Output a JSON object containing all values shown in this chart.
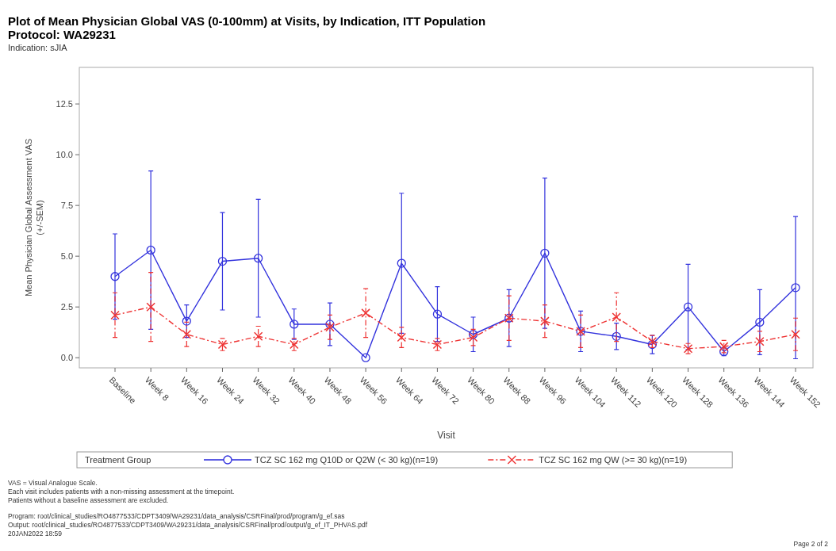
{
  "chart_data": {
    "type": "line",
    "title": "Plot of Mean Physician Global VAS (0-100mm) at Visits, by Indication, ITT Population",
    "subtitle": "Protocol: WA29231\nIndication: sJIA",
    "xlabel": "Visit",
    "ylabel": "Mean Physician Global Assessment VAS\n(+/-SEM)",
    "legend_title": "Treatment Group",
    "legend": "bottom",
    "categories": [
      "Baseline",
      "Week 8",
      "Week 16",
      "Week 24",
      "Week 32",
      "Week 40",
      "Week 48",
      "Week 56",
      "Week 64",
      "Week 72",
      "Week 80",
      "Week 88",
      "Week 96",
      "Week 104",
      "Week 112",
      "Week 120",
      "Week 128",
      "Week 136",
      "Week 144",
      "Week 152"
    ],
    "ylim": [
      -0.5,
      14.3
    ],
    "yticks": [
      {
        "value": 0,
        "label": "0.0"
      },
      {
        "value": 2.5,
        "label": "2.5"
      },
      {
        "value": 5,
        "label": "5.0"
      },
      {
        "value": 7.5,
        "label": "7.5"
      },
      {
        "value": 10,
        "label": "10.0"
      },
      {
        "value": 12.5,
        "label": "12.5"
      }
    ],
    "grid": false,
    "series": [
      {
        "name": "TCZ SC 162 mg Q10D or Q2W (< 30 kg)(n=19)",
        "color": "#3333dd",
        "marker": "circle",
        "line_style": "solid",
        "values": [
          4.0,
          5.3,
          1.8,
          4.75,
          4.9,
          1.65,
          1.65,
          0.0,
          4.65,
          2.15,
          1.15,
          1.95,
          5.15,
          1.3,
          1.05,
          0.65,
          2.5,
          0.3,
          1.75,
          3.45
        ],
        "errors": [
          2.1,
          3.9,
          0.8,
          2.4,
          2.9,
          0.75,
          1.05,
          null,
          3.45,
          1.35,
          0.85,
          1.4,
          3.7,
          1.0,
          0.65,
          0.45,
          2.1,
          0.2,
          1.6,
          3.5
        ]
      },
      {
        "name": "TCZ SC 162 mg QW (>= 30 kg)(n=19)",
        "color": "#ee3333",
        "marker": "cross",
        "line_style": "dashed",
        "values": [
          2.1,
          2.5,
          1.15,
          0.65,
          1.05,
          0.65,
          1.5,
          2.2,
          1.0,
          0.65,
          1.0,
          1.95,
          1.8,
          1.3,
          2.0,
          0.8,
          0.45,
          0.55,
          0.8,
          1.15
        ],
        "errors": [
          1.1,
          1.7,
          0.6,
          0.3,
          0.5,
          0.3,
          0.6,
          1.2,
          0.5,
          0.3,
          0.4,
          1.1,
          0.8,
          0.8,
          1.2,
          0.3,
          0.25,
          0.3,
          0.5,
          0.8
        ]
      }
    ],
    "annotations": [
      "VAS = Visual Analogue Scale.",
      "Each visit includes patients with a non-missing assessment at the timepoint.",
      "Patients without a baseline assessment are excluded.",
      "Program: root/clinical_studies/RO4877533/CDPT3409/WA29231/data_analysis/CSRFinal/prod/program/g_ef.sas",
      "Output: root/clinical_studies/RO4877533/CDPT3409/WA29231/data_analysis/CSRFinal/prod/output/g_ef_IT_PHVAS.pdf",
      "20JAN2022 18:59",
      "Page 2 of 2"
    ]
  }
}
